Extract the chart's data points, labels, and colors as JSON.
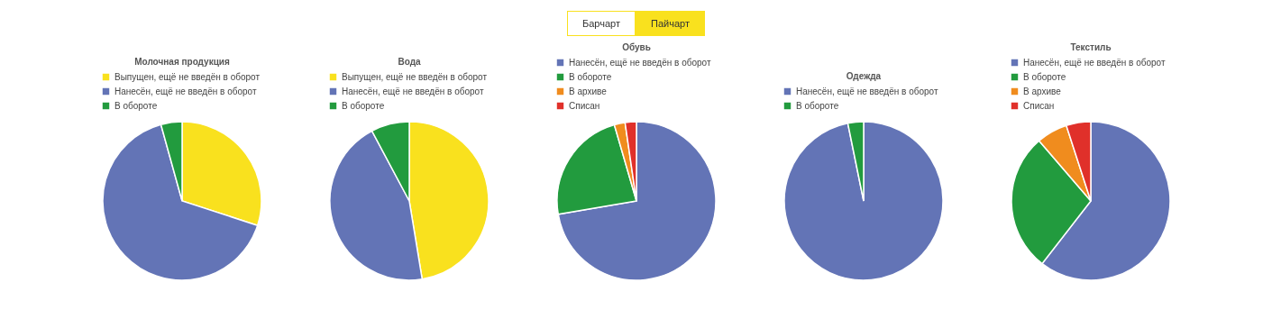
{
  "chart_data": [
    {
      "type": "other",
      "annotations": [
        "Барчарт",
        "Пайчарт"
      ]
    },
    {
      "type": "pie",
      "title": "Молочная продукция",
      "legend": "top",
      "categories": [
        "Выпущен, ещё не введён в оборот",
        "Нанесён, ещё не введён в оборот",
        "В обороте"
      ],
      "values": [
        30,
        65.7,
        4.3
      ],
      "colors": [
        "#f9e11e",
        "#6374b6",
        "#229b3e"
      ]
    },
    {
      "type": "pie",
      "title": "Вода",
      "legend": "top",
      "categories": [
        "Выпущен, ещё не введён в оборот",
        "Нанесён, ещё не введён в оборот",
        "В обороте"
      ],
      "values": [
        47.4,
        44.8,
        7.8
      ],
      "colors": [
        "#f9e11e",
        "#6374b6",
        "#229b3e"
      ]
    },
    {
      "type": "pie",
      "title": "Обувь",
      "legend": "top",
      "categories": [
        "Нанесён, ещё не введён в оборот",
        "В обороте",
        "В архиве",
        "Списан"
      ],
      "values": [
        72.3,
        23.2,
        2.2,
        2.3
      ],
      "colors": [
        "#6374b6",
        "#229b3e",
        "#f08c1e",
        "#e0302a"
      ]
    },
    {
      "type": "pie",
      "title": "Одежда",
      "legend": "top",
      "categories": [
        "Нанесён, ещё не введён в оборот",
        "В обороте"
      ],
      "values": [
        96.8,
        3.2
      ],
      "colors": [
        "#6374b6",
        "#229b3e"
      ]
    },
    {
      "type": "pie",
      "title": "Текстиль",
      "legend": "top",
      "categories": [
        "Нанесён, ещё не введён в оборот",
        "В обороте",
        "В архиве",
        "Списан"
      ],
      "values": [
        60.5,
        28.2,
        6.3,
        5.0
      ],
      "colors": [
        "#6374b6",
        "#229b3e",
        "#f08c1e",
        "#e0302a"
      ]
    }
  ]
}
